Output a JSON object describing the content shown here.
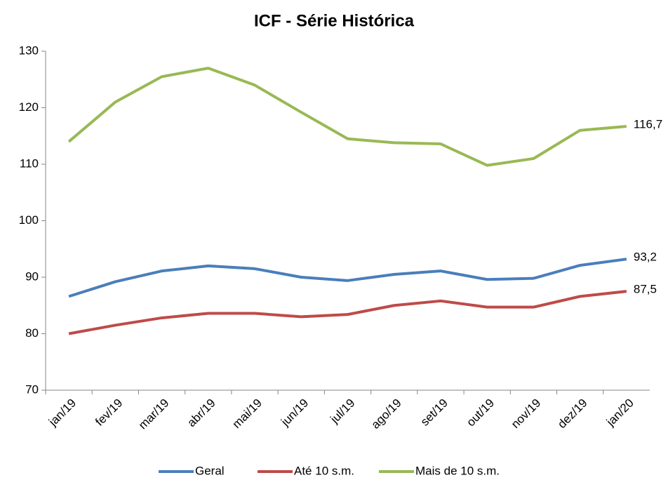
{
  "chart_data": {
    "type": "line",
    "title": "ICF - Série Histórica",
    "categories": [
      "jan/19",
      "fev/19",
      "mar/19",
      "abr/19",
      "mai/19",
      "jun/19",
      "jul/19",
      "ago/19",
      "set/19",
      "out/19",
      "nov/19",
      "dez/19",
      "jan/20"
    ],
    "series": [
      {
        "name": "Geral",
        "color": "#4a7ebb",
        "values": [
          86.6,
          89.2,
          91.1,
          92.0,
          91.5,
          90.0,
          89.4,
          90.5,
          91.1,
          89.6,
          89.8,
          92.1,
          93.2
        ],
        "value_labels": [
          null,
          null,
          null,
          null,
          null,
          null,
          null,
          null,
          null,
          null,
          null,
          null,
          "93,2"
        ]
      },
      {
        "name": "Até 10 s.m.",
        "color": "#be4b48",
        "values": [
          80.0,
          81.5,
          82.8,
          83.6,
          83.6,
          83.0,
          83.4,
          85.0,
          85.8,
          84.7,
          84.7,
          86.6,
          87.5
        ],
        "value_labels": [
          null,
          null,
          null,
          null,
          null,
          null,
          null,
          null,
          null,
          null,
          null,
          null,
          "87,5"
        ]
      },
      {
        "name": "Mais de 10 s.m.",
        "color": "#98b954",
        "values": [
          114.0,
          121.0,
          125.5,
          127.0,
          124.0,
          119.2,
          114.5,
          113.8,
          113.6,
          109.8,
          111.0,
          116.0,
          116.7
        ],
        "value_labels": [
          null,
          null,
          null,
          null,
          null,
          null,
          null,
          null,
          null,
          null,
          null,
          null,
          "116,7"
        ]
      }
    ],
    "ylim": [
      70,
      130
    ],
    "yticks": [
      70,
      80,
      90,
      100,
      110,
      120,
      130
    ],
    "grid": false,
    "legend": "bottom"
  }
}
